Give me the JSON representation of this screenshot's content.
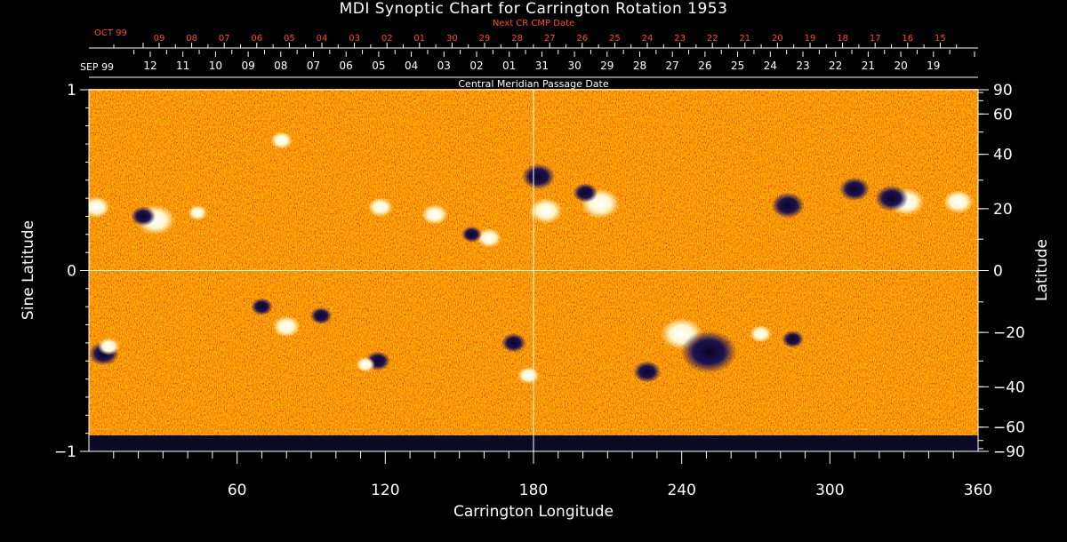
{
  "title": "MDI Synoptic Chart for Carrington Rotation 1953",
  "colors": {
    "background": "#000000",
    "map_base": "#e8511a",
    "map_bright": "#ffd27a",
    "strong_positive": "#fffbe8",
    "strong_negative": "#120a3c",
    "red_label": "#ff4a2a",
    "grid": "#ffffff"
  },
  "top_axis_next": {
    "label": "Next CR CMP Date",
    "month_label": "OCT 99",
    "days": [
      "09",
      "08",
      "07",
      "06",
      "05",
      "04",
      "03",
      "02",
      "01",
      "30",
      "29",
      "28",
      "27",
      "26",
      "25",
      "24",
      "23",
      "22",
      "21",
      "20",
      "19",
      "18",
      "17",
      "16",
      "15"
    ]
  },
  "top_axis_current": {
    "label": "Central Meridian Passage Date",
    "month_label": "SEP 99",
    "days": [
      "12",
      "11",
      "10",
      "09",
      "08",
      "07",
      "06",
      "05",
      "04",
      "03",
      "02",
      "01",
      "31",
      "30",
      "29",
      "28",
      "27",
      "26",
      "25",
      "24",
      "23",
      "22",
      "21",
      "20",
      "19"
    ]
  },
  "chart_data": {
    "type": "heatmap",
    "title": "MDI Synoptic Chart for Carrington Rotation 1953",
    "xlabel": "Carrington Longitude",
    "ylabel_left": "Sine Latitude",
    "ylabel_right": "Latitude",
    "xlim": [
      0,
      360
    ],
    "ylim": [
      -1,
      1
    ],
    "x_ticks": [
      60,
      120,
      180,
      240,
      300,
      360
    ],
    "y_ticks_left": [
      1,
      0,
      -1
    ],
    "y_ticks_left_labels": [
      "1",
      "0",
      "−1"
    ],
    "y_ticks_right": [
      90,
      60,
      40,
      20,
      0,
      -20,
      -40,
      -60,
      -90
    ],
    "y_ticks_right_labels": [
      "90",
      "60",
      "40",
      "20",
      "0",
      "−20",
      "−40",
      "−60",
      "−90"
    ],
    "grid": "crosshair at longitude 180 and sine latitude 0",
    "colormap": "dark blue (negative) - orange (weak) - white (positive)",
    "active_regions": [
      {
        "lon": 3,
        "sinlat": 0.35,
        "polarity": "positive",
        "size": 0.6
      },
      {
        "lon": 27,
        "sinlat": 0.28,
        "polarity": "positive",
        "size": 1.0
      },
      {
        "lon": 22,
        "sinlat": 0.3,
        "polarity": "negative",
        "size": 0.5
      },
      {
        "lon": 44,
        "sinlat": 0.32,
        "polarity": "positive",
        "size": 0.3
      },
      {
        "lon": 78,
        "sinlat": 0.72,
        "polarity": "positive",
        "size": 0.4
      },
      {
        "lon": 118,
        "sinlat": 0.35,
        "polarity": "positive",
        "size": 0.5
      },
      {
        "lon": 140,
        "sinlat": 0.31,
        "polarity": "positive",
        "size": 0.55
      },
      {
        "lon": 162,
        "sinlat": 0.18,
        "polarity": "positive",
        "size": 0.5
      },
      {
        "lon": 155,
        "sinlat": 0.2,
        "polarity": "negative",
        "size": 0.35
      },
      {
        "lon": 185,
        "sinlat": 0.33,
        "polarity": "positive",
        "size": 0.8
      },
      {
        "lon": 182,
        "sinlat": 0.52,
        "polarity": "negative",
        "size": 0.8
      },
      {
        "lon": 207,
        "sinlat": 0.37,
        "polarity": "positive",
        "size": 1.0
      },
      {
        "lon": 201,
        "sinlat": 0.43,
        "polarity": "negative",
        "size": 0.5
      },
      {
        "lon": 283,
        "sinlat": 0.36,
        "polarity": "negative",
        "size": 0.8
      },
      {
        "lon": 310,
        "sinlat": 0.45,
        "polarity": "negative",
        "size": 0.7
      },
      {
        "lon": 331,
        "sinlat": 0.38,
        "polarity": "positive",
        "size": 0.9
      },
      {
        "lon": 325,
        "sinlat": 0.4,
        "polarity": "negative",
        "size": 0.8
      },
      {
        "lon": 352,
        "sinlat": 0.38,
        "polarity": "positive",
        "size": 0.7
      },
      {
        "lon": 6,
        "sinlat": -0.46,
        "polarity": "negative",
        "size": 0.7
      },
      {
        "lon": 8,
        "sinlat": -0.42,
        "polarity": "positive",
        "size": 0.4
      },
      {
        "lon": 70,
        "sinlat": -0.2,
        "polarity": "negative",
        "size": 0.4
      },
      {
        "lon": 80,
        "sinlat": -0.31,
        "polarity": "positive",
        "size": 0.6
      },
      {
        "lon": 94,
        "sinlat": -0.25,
        "polarity": "negative",
        "size": 0.4
      },
      {
        "lon": 117,
        "sinlat": -0.5,
        "polarity": "negative",
        "size": 0.5
      },
      {
        "lon": 112,
        "sinlat": -0.52,
        "polarity": "positive",
        "size": 0.3
      },
      {
        "lon": 172,
        "sinlat": -0.4,
        "polarity": "negative",
        "size": 0.5
      },
      {
        "lon": 178,
        "sinlat": -0.58,
        "polarity": "positive",
        "size": 0.4
      },
      {
        "lon": 240,
        "sinlat": -0.35,
        "polarity": "positive",
        "size": 1.1
      },
      {
        "lon": 251,
        "sinlat": -0.45,
        "polarity": "negative",
        "size": 1.6
      },
      {
        "lon": 226,
        "sinlat": -0.56,
        "polarity": "negative",
        "size": 0.6
      },
      {
        "lon": 272,
        "sinlat": -0.35,
        "polarity": "positive",
        "size": 0.4
      },
      {
        "lon": 285,
        "sinlat": -0.38,
        "polarity": "negative",
        "size": 0.4
      }
    ]
  }
}
